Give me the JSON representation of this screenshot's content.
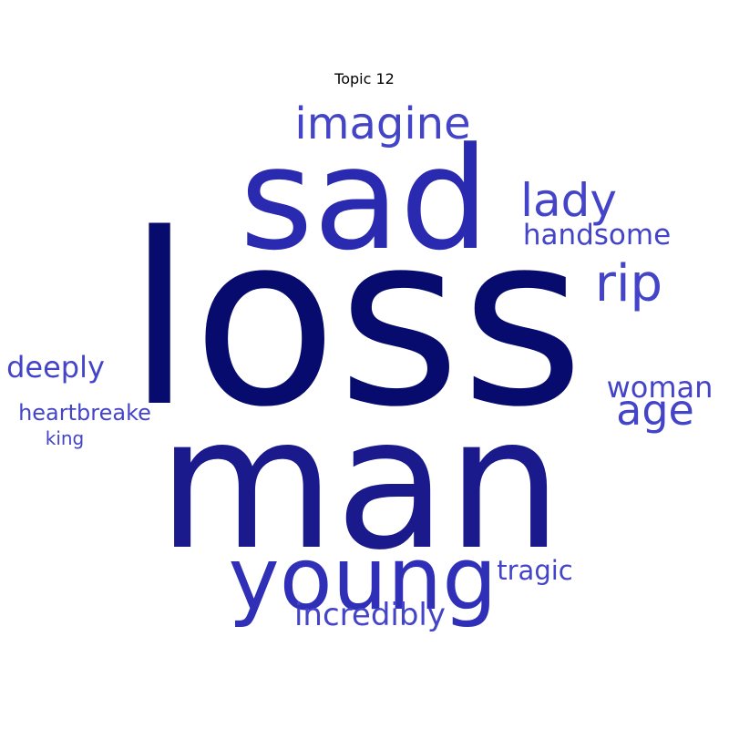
{
  "chart_data": {
    "type": "wordcloud",
    "title": "Topic 12",
    "words": [
      {
        "text": "loss",
        "rank": 1,
        "color": "#070b6e"
      },
      {
        "text": "man",
        "rank": 2,
        "color": "#1a1a8c"
      },
      {
        "text": "sad",
        "rank": 3,
        "color": "#2a2ab0"
      },
      {
        "text": "young",
        "rank": 4,
        "color": "#2f2fb8"
      },
      {
        "text": "imagine",
        "rank": 5,
        "color": "#4444c8"
      },
      {
        "text": "rip",
        "rank": 6,
        "color": "#4444c8"
      },
      {
        "text": "lady",
        "rank": 7,
        "color": "#4444c8"
      },
      {
        "text": "age",
        "rank": 8,
        "color": "#4444c8"
      },
      {
        "text": "incredibly",
        "rank": 9,
        "color": "#4444c8"
      },
      {
        "text": "deeply",
        "rank": 10,
        "color": "#4444c8"
      },
      {
        "text": "woman",
        "rank": 11,
        "color": "#4444c8"
      },
      {
        "text": "handsome",
        "rank": 12,
        "color": "#4444c8"
      },
      {
        "text": "tragic",
        "rank": 13,
        "color": "#4444c8"
      },
      {
        "text": "heartbreake",
        "rank": 14,
        "color": "#4444c8"
      },
      {
        "text": "king",
        "rank": 15,
        "color": "#4444c8"
      }
    ]
  }
}
